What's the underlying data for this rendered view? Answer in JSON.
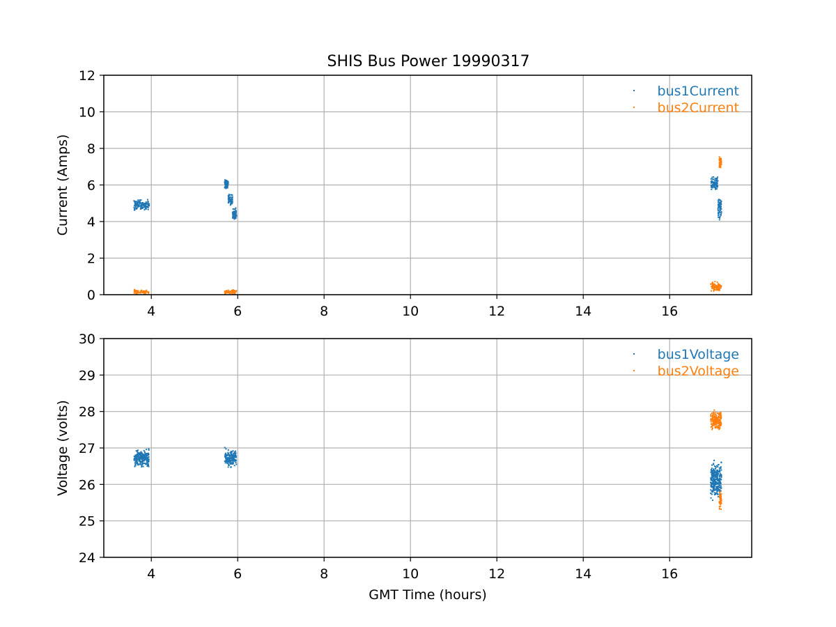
{
  "chart_data": [
    {
      "type": "scatter",
      "title": "SHIS Bus Power 19990317",
      "xlabel": "",
      "ylabel": "Current (Amps)",
      "xlim": [
        2.9,
        17.9
      ],
      "ylim": [
        0,
        12
      ],
      "xticks": [
        4,
        6,
        8,
        10,
        12,
        14,
        16
      ],
      "yticks": [
        0,
        2,
        4,
        6,
        8,
        10,
        12
      ],
      "grid": true,
      "legend_position": "top-right",
      "series": [
        {
          "name": "bus1Current",
          "color": "#1f77b4",
          "clusters": [
            {
              "x": [
                3.6,
                3.95
              ],
              "y": [
                4.5,
                5.3
              ]
            },
            {
              "x": [
                5.7,
                5.78
              ],
              "y": [
                5.7,
                6.4
              ]
            },
            {
              "x": [
                5.78,
                5.88
              ],
              "y": [
                4.8,
                5.6
              ]
            },
            {
              "x": [
                5.88,
                5.97
              ],
              "y": [
                4.0,
                4.8
              ]
            },
            {
              "x": [
                16.95,
                17.12
              ],
              "y": [
                5.6,
                6.6
              ]
            },
            {
              "x": [
                17.12,
                17.2
              ],
              "y": [
                3.9,
                5.5
              ]
            }
          ]
        },
        {
          "name": "bus2Current",
          "color": "#ff7f0e",
          "clusters": [
            {
              "x": [
                3.6,
                3.95
              ],
              "y": [
                0.0,
                0.3
              ]
            },
            {
              "x": [
                5.7,
                5.97
              ],
              "y": [
                0.0,
                0.3
              ]
            },
            {
              "x": [
                16.95,
                17.2
              ],
              "y": [
                0.1,
                0.8
              ]
            },
            {
              "x": [
                17.15,
                17.2
              ],
              "y": [
                6.9,
                7.6
              ]
            }
          ]
        }
      ]
    },
    {
      "type": "scatter",
      "title": "",
      "xlabel": "GMT Time (hours)",
      "ylabel": "Voltage (volts)",
      "xlim": [
        2.9,
        17.9
      ],
      "ylim": [
        24,
        30
      ],
      "xticks": [
        4,
        6,
        8,
        10,
        12,
        14,
        16
      ],
      "yticks": [
        24,
        25,
        26,
        27,
        28,
        29,
        30
      ],
      "grid": true,
      "legend_position": "top-right",
      "series": [
        {
          "name": "bus1Voltage",
          "color": "#1f77b4",
          "clusters": [
            {
              "x": [
                3.6,
                3.95
              ],
              "y": [
                26.4,
                27.05
              ]
            },
            {
              "x": [
                5.7,
                5.97
              ],
              "y": [
                26.4,
                27.05
              ]
            },
            {
              "x": [
                16.95,
                17.2
              ],
              "y": [
                25.5,
                26.7
              ]
            }
          ]
        },
        {
          "name": "bus2Voltage",
          "color": "#ff7f0e",
          "clusters": [
            {
              "x": [
                16.95,
                17.2
              ],
              "y": [
                27.4,
                28.1
              ]
            },
            {
              "x": [
                17.15,
                17.2
              ],
              "y": [
                25.3,
                25.9
              ]
            }
          ]
        }
      ]
    }
  ]
}
